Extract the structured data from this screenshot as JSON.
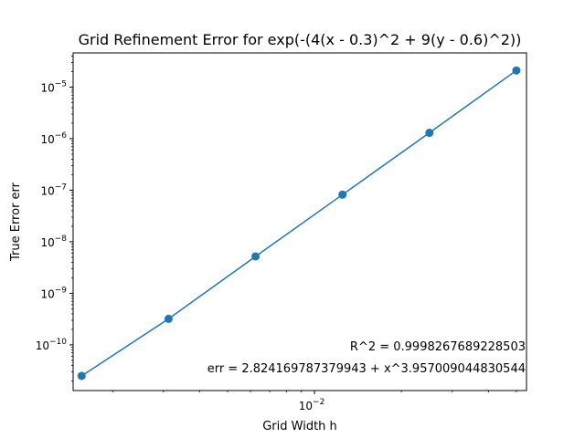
{
  "chart_data": {
    "type": "line",
    "title": "Grid Refinement Error for exp(-(4(x - 0.3)^2 + 9(y - 0.6)^2))",
    "xlabel": "Grid Width h",
    "ylabel": "True Error err",
    "x_scale": "log",
    "y_scale": "log",
    "xlim": [
      0.00146,
      0.0542
    ],
    "ylim": [
      1.3e-11,
      4.6e-05
    ],
    "grid": false,
    "color": "#1f77b4",
    "series": [
      {
        "x": [
          0.0015625,
          0.003125,
          0.00625,
          0.0125,
          0.025,
          0.05
        ],
        "y": [
          2.5e-11,
          3.2e-10,
          5.2e-09,
          8.2e-08,
          1.3e-06,
          2.1e-05
        ]
      }
    ],
    "x_ticks": [
      {
        "value": 0.01,
        "label_base": "10",
        "label_exp": "−2"
      }
    ],
    "y_ticks": [
      {
        "value": 1e-10,
        "label_base": "10",
        "label_exp": "−10"
      },
      {
        "value": 1e-09,
        "label_base": "10",
        "label_exp": "−9"
      },
      {
        "value": 1e-08,
        "label_base": "10",
        "label_exp": "−8"
      },
      {
        "value": 1e-07,
        "label_base": "10",
        "label_exp": "−7"
      },
      {
        "value": 1e-06,
        "label_base": "10",
        "label_exp": "−6"
      },
      {
        "value": 1e-05,
        "label_base": "10",
        "label_exp": "−5"
      }
    ],
    "annotations": [
      "R^2 = 0.9998267689228503",
      "err = 2.824169787379943 + x^3.957009044830544"
    ]
  }
}
